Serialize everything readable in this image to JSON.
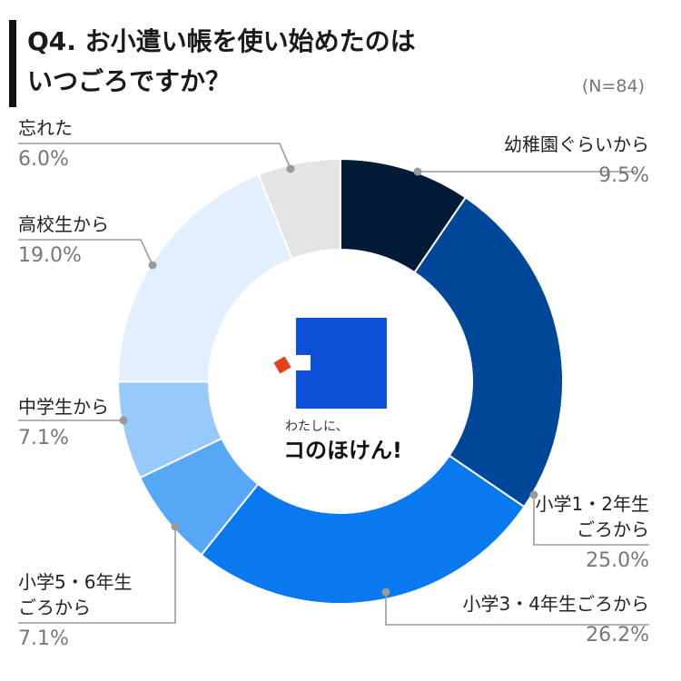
{
  "title": {
    "line1": "Q4. お小遣い帳を使い始めたのは",
    "line2": "いつごろですか？"
  },
  "note": "(N=84)",
  "logo": {
    "tagline": "わたしに、",
    "name": "コのほけん!",
    "square_color": "#0e4fd8",
    "accent_color": "#e8401c"
  },
  "chart_data": {
    "type": "pie",
    "donut": true,
    "title": "Q4. お小遣い帳を使い始めたのはいつごろですか？",
    "n": 84,
    "slices": [
      {
        "label": "幼稚園ぐらいから",
        "label_lines": [
          "幼稚園ぐらいから"
        ],
        "value": 9.5,
        "display": "9.5%",
        "color": "#021b36"
      },
      {
        "label": "小学1・2年生ごろから",
        "label_lines": [
          "小学1・2年生",
          "ごろから"
        ],
        "value": 25.0,
        "display": "25.0%",
        "color": "#00479a"
      },
      {
        "label": "小学3・4年生ごろから",
        "label_lines": [
          "小学3・4年生ごろから"
        ],
        "value": 26.2,
        "display": "26.2%",
        "color": "#0a78ef"
      },
      {
        "label": "小学5・6年生ごろから",
        "label_lines": [
          "小学5・6年生",
          "ごろから"
        ],
        "value": 7.1,
        "display": "7.1%",
        "color": "#56a8f7"
      },
      {
        "label": "中学生から",
        "label_lines": [
          "中学生から"
        ],
        "value": 7.1,
        "display": "7.1%",
        "color": "#98c9fb"
      },
      {
        "label": "高校生から",
        "label_lines": [
          "高校生から"
        ],
        "value": 19.0,
        "display": "19.0%",
        "color": "#e2efff"
      },
      {
        "label": "忘れた",
        "label_lines": [
          "忘れた"
        ],
        "value": 6.0,
        "display": "6.0%",
        "color": "#e4e4e4"
      }
    ]
  }
}
